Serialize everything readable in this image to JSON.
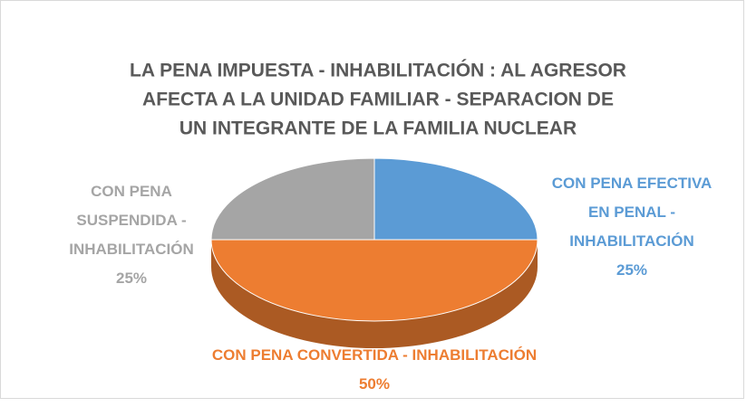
{
  "chart_data": {
    "type": "pie3d",
    "title": [
      "LA PENA IMPUESTA - INHABILITACIÓN : AL AGRESOR",
      "AFECTA A LA UNIDAD FAMILIAR -  SEPARACION DE",
      "UN INTEGRANTE DE LA FAMILIA NUCLEAR"
    ],
    "categories": [
      "CON PENA EFECTIVA EN PENAL - INHABILITACIÓN",
      "CON PENA CONVERTIDA - INHABILITACIÓN",
      "CON PENA SUSPENDIDA - INHABILITACIÓN"
    ],
    "values": [
      25,
      50,
      25
    ],
    "value_labels": [
      "25%",
      "50%",
      "25%"
    ],
    "colors": [
      "#5b9bd5",
      "#ed7d31",
      "#a5a5a5"
    ]
  }
}
